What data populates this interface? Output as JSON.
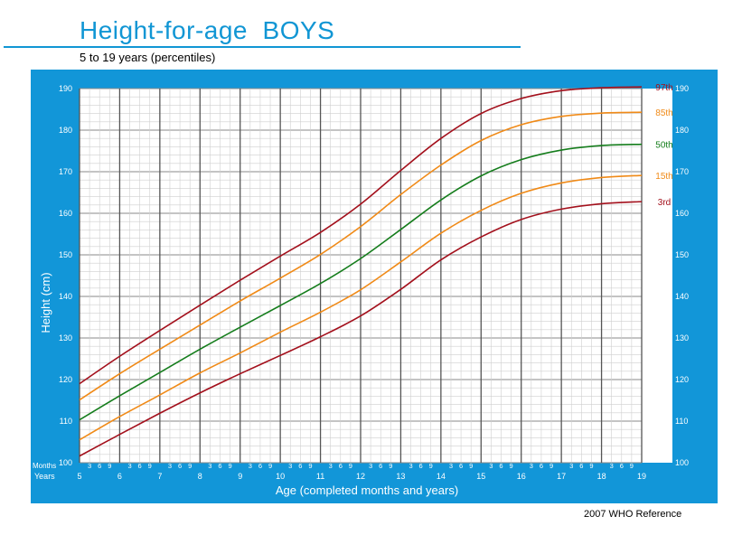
{
  "header": {
    "title": "Height-for-age  BOYS",
    "subtitle": "5 to 19 years (percentiles)"
  },
  "footer": {
    "source": "2007 WHO Reference"
  },
  "colors": {
    "panel": "#1296d8",
    "p97": "#a3101c",
    "p85": "#f08a17",
    "p50": "#157d1c",
    "p15": "#f08a17",
    "p3": "#a3101c"
  },
  "chart_data": {
    "type": "line",
    "xlabel": "Age (completed months and years)",
    "ylabel": "Height (cm)",
    "xlim": [
      5,
      19
    ],
    "ylim": [
      100,
      190
    ],
    "y_ticks": [
      100,
      110,
      120,
      130,
      140,
      150,
      160,
      170,
      180,
      190
    ],
    "x_ticks": [
      5,
      6,
      7,
      8,
      9,
      10,
      11,
      12,
      13,
      14,
      15,
      16,
      17,
      18,
      19
    ],
    "month_ticks": [
      "3",
      "6",
      "9"
    ],
    "row_labels": {
      "months": "Months",
      "years": "Years"
    },
    "grid": true,
    "x": [
      5,
      6,
      7,
      8,
      9,
      10,
      11,
      12,
      13,
      14,
      15,
      16,
      17,
      18,
      19
    ],
    "series": [
      {
        "name": "97th",
        "color": "#a3101c",
        "values": [
          119,
          125.6,
          131.8,
          137.9,
          143.9,
          149.7,
          155.4,
          162.2,
          170.3,
          178.0,
          184.0,
          187.6,
          189.5,
          190.2,
          190.4
        ]
      },
      {
        "name": "85th",
        "color": "#f08a17",
        "values": [
          115.1,
          121.4,
          127.3,
          133.1,
          138.9,
          144.4,
          150.1,
          156.8,
          164.5,
          171.6,
          177.5,
          181.3,
          183.3,
          184.1,
          184.3
        ]
      },
      {
        "name": "50th",
        "color": "#157d1c",
        "values": [
          110.3,
          116.1,
          121.7,
          127.3,
          132.6,
          137.8,
          143.1,
          149.1,
          156.1,
          163.2,
          169.0,
          172.9,
          175.2,
          176.3,
          176.6
        ]
      },
      {
        "name": "15th",
        "color": "#f08a17",
        "values": [
          105.5,
          111.1,
          116.3,
          121.6,
          126.4,
          131.4,
          136.2,
          141.6,
          148.3,
          155.2,
          160.7,
          164.8,
          167.3,
          168.6,
          169.1
        ]
      },
      {
        "name": "3rd",
        "color": "#a3101c",
        "values": [
          101.6,
          106.8,
          111.9,
          116.8,
          121.4,
          125.8,
          130.3,
          135.3,
          141.7,
          148.8,
          154.3,
          158.5,
          161.0,
          162.3,
          162.8
        ]
      }
    ]
  }
}
